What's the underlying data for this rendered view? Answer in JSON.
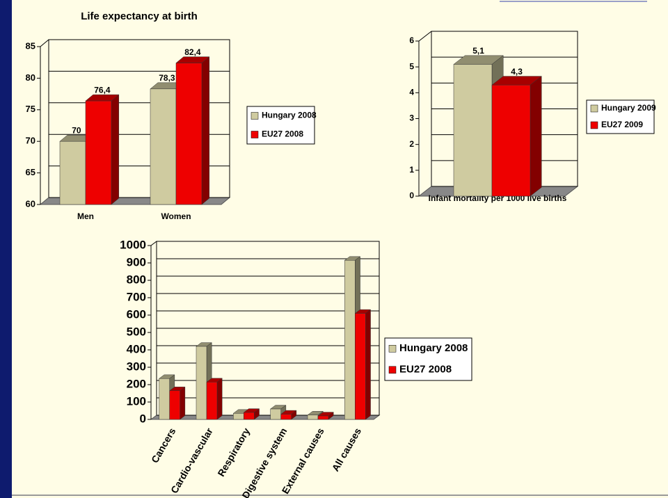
{
  "chart_data": [
    {
      "type": "bar",
      "title": "Life expectancy at birth",
      "categories": [
        "Men",
        "Women"
      ],
      "series": [
        {
          "name": "Hungary 2008",
          "color": "#cfcba0",
          "values": [
            70,
            78.3
          ],
          "value_labels": [
            "70",
            "78,3"
          ]
        },
        {
          "name": "EU27 2008",
          "color": "#ee0000",
          "values": [
            76.4,
            82.4
          ],
          "value_labels": [
            "76,4",
            "82,4"
          ]
        }
      ],
      "ylim": [
        60,
        85
      ],
      "yticks": [
        60,
        65,
        70,
        75,
        80,
        85
      ],
      "grid": true,
      "legend": "right"
    },
    {
      "type": "bar",
      "x_label": "Infant mortality per 1000 live births",
      "categories": [
        null
      ],
      "series": [
        {
          "name": "Hungary 2009",
          "color": "#cfcba0",
          "values": [
            5.1
          ],
          "value_labels": [
            "5,1"
          ]
        },
        {
          "name": "EU27 2009",
          "color": "#ee0000",
          "values": [
            4.3
          ],
          "value_labels": [
            "4,3"
          ]
        }
      ],
      "ylim": [
        0,
        6
      ],
      "yticks": [
        0,
        1,
        2,
        3,
        4,
        5,
        6
      ],
      "grid": true,
      "legend": "right"
    },
    {
      "type": "bar",
      "categories": [
        "Cancers",
        "Cardio-vascular",
        "Respiratory",
        "Digestive system",
        "External causes",
        "All causes"
      ],
      "series": [
        {
          "name": "Hungary 2008",
          "color": "#cfcba0",
          "values": [
            235,
            420,
            35,
            60,
            25,
            915
          ]
        },
        {
          "name": "EU27 2008",
          "color": "#ee0000",
          "values": [
            165,
            215,
            40,
            30,
            20,
            610
          ]
        }
      ],
      "ylim": [
        0,
        1000
      ],
      "yticks": [
        0,
        100,
        200,
        300,
        400,
        500,
        600,
        700,
        800,
        900,
        1000
      ],
      "grid": true,
      "legend": "right"
    }
  ]
}
